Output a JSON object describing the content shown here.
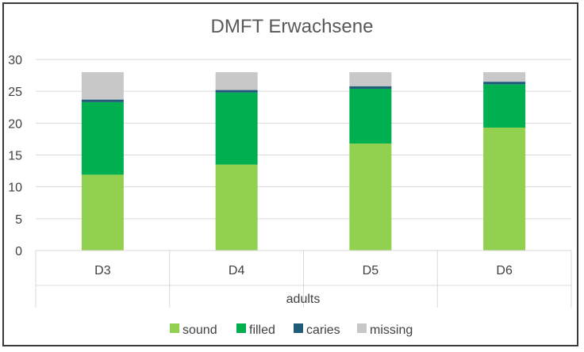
{
  "chart_data": {
    "type": "bar",
    "stacked": true,
    "title": "DMFT Erwachsene",
    "xlabel": "adults",
    "ylabel": "",
    "categories": [
      "D3",
      "D4",
      "D5",
      "D6"
    ],
    "ylim": [
      0,
      30
    ],
    "yticks": [
      0,
      5,
      10,
      15,
      20,
      25,
      30
    ],
    "grid": true,
    "legend_position": "bottom",
    "series": [
      {
        "name": "sound",
        "color": "#92d050",
        "values": [
          11.9,
          13.5,
          16.8,
          19.3
        ]
      },
      {
        "name": "filled",
        "color": "#00b050",
        "values": [
          11.4,
          11.3,
          8.6,
          6.8
        ]
      },
      {
        "name": "caries",
        "color": "#1f5c7a",
        "values": [
          0.4,
          0.4,
          0.4,
          0.4
        ]
      },
      {
        "name": "missing",
        "color": "#c8c8c8",
        "values": [
          4.3,
          2.8,
          2.2,
          1.5
        ]
      }
    ]
  }
}
